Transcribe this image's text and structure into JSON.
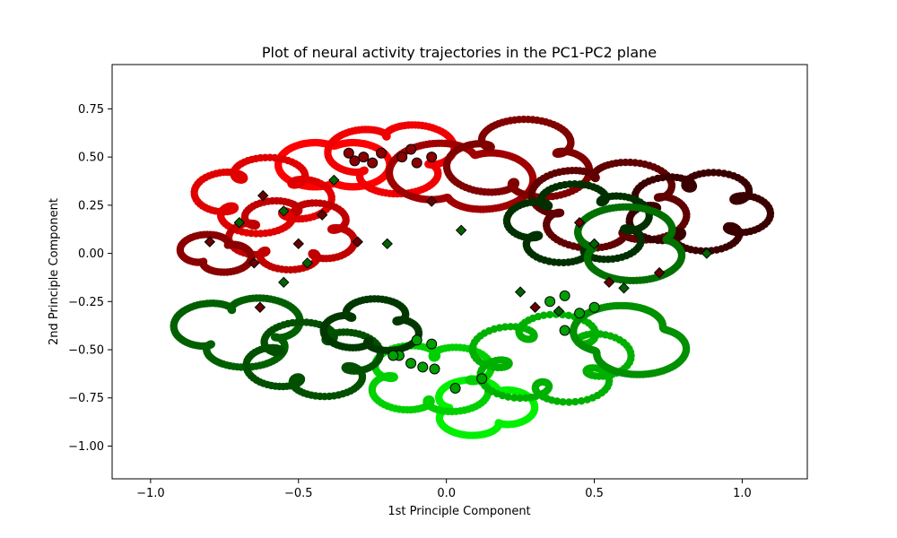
{
  "chart_data": {
    "type": "scatter",
    "title": "Plot of neural activity trajectories in the PC1-PC2 plane",
    "xlabel": "1st Principle Component",
    "ylabel": "2nd Principle Component",
    "xlim": [
      -1.13,
      1.22
    ],
    "ylim": [
      -1.17,
      0.98
    ],
    "xticks": [
      -1.0,
      -0.5,
      0.0,
      0.5,
      1.0
    ],
    "xtick_labels": [
      "−1.0",
      "−0.5",
      "0.0",
      "0.5",
      "1.0"
    ],
    "yticks": [
      -1.0,
      -0.75,
      -0.5,
      -0.25,
      0.0,
      0.25,
      0.5,
      0.75
    ],
    "ytick_labels": [
      "−1.00",
      "−0.75",
      "−0.50",
      "−0.25",
      "0.00",
      "0.25",
      "0.50",
      "0.75"
    ],
    "grid": false,
    "legend": false,
    "marker_legend": {
      "circle_outlined": "trajectory start points (black-edged circles)",
      "diamond_outlined": "trajectory end points (black-edged diamonds)"
    },
    "colors": {
      "red_group": [
        "#ff0000",
        "#e00000",
        "#b00000",
        "#800000",
        "#500000",
        "#300000"
      ],
      "green_group": [
        "#00ff00",
        "#00d000",
        "#00a000",
        "#007000",
        "#004500",
        "#002800"
      ]
    },
    "series": [
      {
        "group": "red",
        "cx": -0.38,
        "cy": 0.46,
        "r": 0.19,
        "color": "#ff0000",
        "points": 180
      },
      {
        "group": "red",
        "cx": -0.18,
        "cy": 0.5,
        "r": 0.22,
        "color": "#f00000",
        "points": 180
      },
      {
        "group": "red",
        "cx": -0.62,
        "cy": 0.3,
        "r": 0.22,
        "color": "#e00000",
        "points": 180
      },
      {
        "group": "red",
        "cx": -0.52,
        "cy": 0.1,
        "r": 0.22,
        "color": "#c00000",
        "points": 180
      },
      {
        "group": "red",
        "cx": 0.05,
        "cy": 0.4,
        "r": 0.24,
        "color": "#a00000",
        "points": 180
      },
      {
        "group": "red",
        "cx": 0.25,
        "cy": 0.48,
        "r": 0.24,
        "color": "#800000",
        "points": 180
      },
      {
        "group": "red",
        "cx": 0.55,
        "cy": 0.25,
        "r": 0.28,
        "color": "#600000",
        "points": 180
      },
      {
        "group": "red",
        "cx": 0.85,
        "cy": 0.22,
        "r": 0.24,
        "color": "#3a0000",
        "points": 180
      },
      {
        "group": "red",
        "cx": -0.78,
        "cy": 0.0,
        "r": 0.12,
        "color": "#8a0000",
        "points": 100
      },
      {
        "group": "green",
        "cx": 0.12,
        "cy": -0.8,
        "r": 0.18,
        "color": "#00f000",
        "points": 180
      },
      {
        "group": "green",
        "cx": -0.05,
        "cy": -0.65,
        "r": 0.22,
        "color": "#00d000",
        "points": 180
      },
      {
        "group": "green",
        "cx": 0.35,
        "cy": -0.55,
        "r": 0.26,
        "color": "#00b000",
        "points": 180
      },
      {
        "group": "green",
        "cx": 0.62,
        "cy": -0.45,
        "r": 0.22,
        "color": "#009000",
        "points": 180
      },
      {
        "group": "green",
        "cx": -0.7,
        "cy": -0.4,
        "r": 0.22,
        "color": "#006000",
        "points": 180
      },
      {
        "group": "green",
        "cx": -0.45,
        "cy": -0.55,
        "r": 0.22,
        "color": "#005000",
        "points": 180
      },
      {
        "group": "green",
        "cx": 0.45,
        "cy": 0.15,
        "r": 0.25,
        "color": "#003000",
        "points": 180
      },
      {
        "group": "green",
        "cx": 0.62,
        "cy": 0.05,
        "r": 0.22,
        "color": "#007000",
        "points": 180
      },
      {
        "group": "green",
        "cx": -0.25,
        "cy": -0.38,
        "r": 0.16,
        "color": "#003800",
        "points": 140
      }
    ],
    "start_points": [
      [
        -0.33,
        0.52
      ],
      [
        -0.28,
        0.5
      ],
      [
        -0.22,
        0.52
      ],
      [
        -0.15,
        0.5
      ],
      [
        -0.1,
        0.47
      ],
      [
        -0.05,
        0.5
      ],
      [
        -0.31,
        0.48
      ],
      [
        -0.25,
        0.47
      ],
      [
        -0.12,
        0.54
      ],
      [
        -0.16,
        -0.53
      ],
      [
        -0.12,
        -0.57
      ],
      [
        -0.08,
        -0.59
      ],
      [
        -0.04,
        -0.6
      ],
      [
        0.03,
        -0.7
      ],
      [
        0.12,
        -0.65
      ],
      [
        -0.18,
        -0.53
      ],
      [
        -0.1,
        -0.45
      ],
      [
        -0.05,
        -0.47
      ],
      [
        0.4,
        -0.4
      ],
      [
        0.45,
        -0.31
      ],
      [
        0.5,
        -0.28
      ],
      [
        0.35,
        -0.25
      ],
      [
        0.4,
        -0.22
      ]
    ],
    "end_points": [
      [
        -0.8,
        0.06
      ],
      [
        -0.7,
        0.16
      ],
      [
        -0.62,
        0.3
      ],
      [
        -0.55,
        0.22
      ],
      [
        -0.5,
        0.05
      ],
      [
        -0.47,
        -0.05
      ],
      [
        -0.42,
        0.2
      ],
      [
        -0.38,
        0.38
      ],
      [
        -0.3,
        0.06
      ],
      [
        -0.2,
        0.05
      ],
      [
        -0.05,
        0.27
      ],
      [
        0.05,
        0.12
      ],
      [
        -0.65,
        -0.05
      ],
      [
        -0.55,
        -0.15
      ],
      [
        -0.63,
        -0.28
      ],
      [
        0.25,
        -0.2
      ],
      [
        0.3,
        -0.28
      ],
      [
        0.38,
        -0.3
      ],
      [
        0.45,
        0.16
      ],
      [
        0.5,
        0.05
      ],
      [
        0.55,
        -0.15
      ],
      [
        0.6,
        -0.18
      ],
      [
        0.72,
        -0.1
      ],
      [
        0.88,
        0.0
      ]
    ]
  }
}
